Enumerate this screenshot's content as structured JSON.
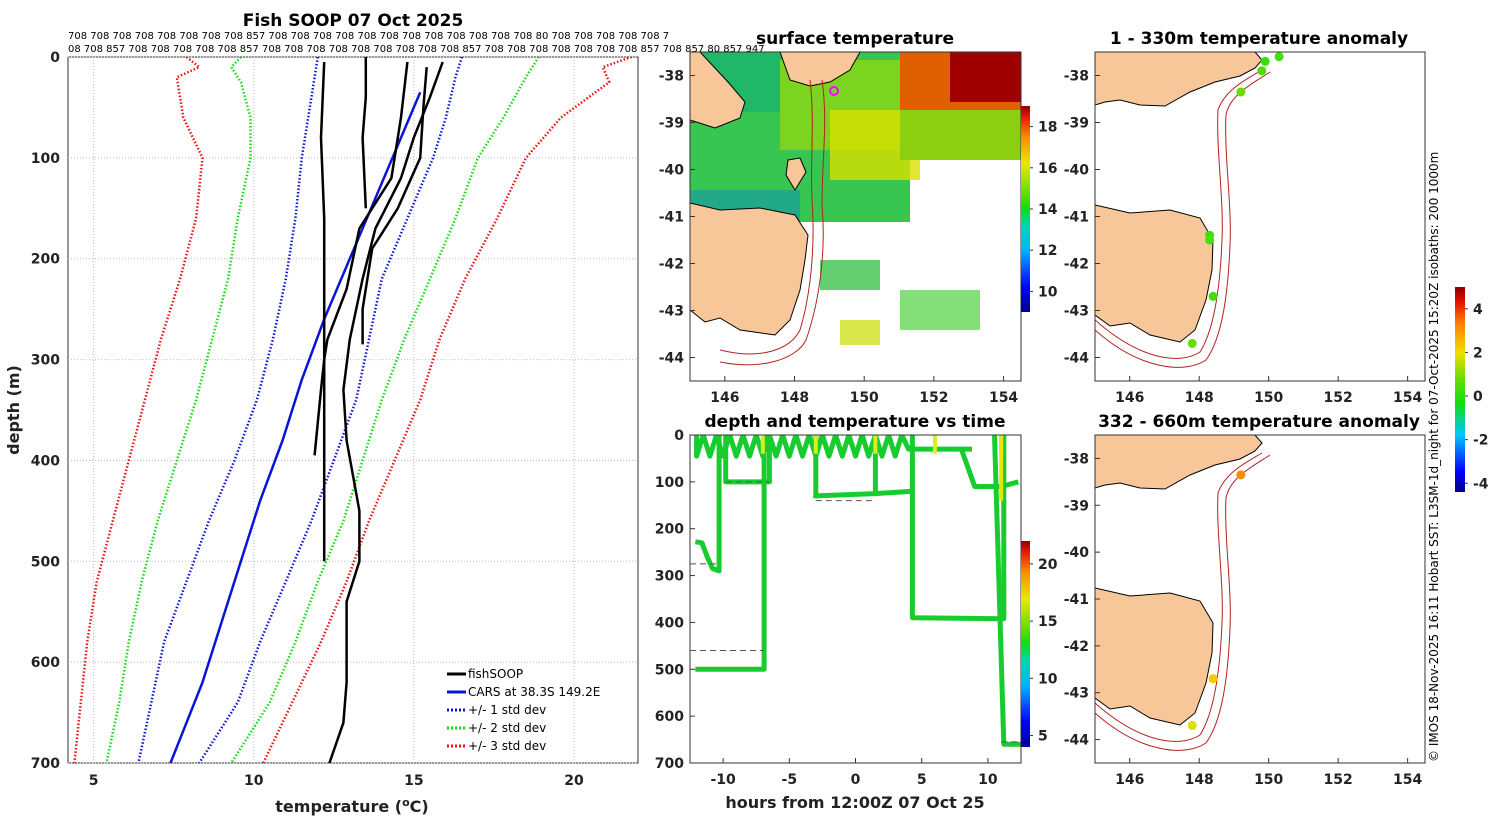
{
  "chart_data": [
    {
      "type": "line",
      "title": "Fish SOOP 07 Oct 2025",
      "xlabel": "temperature (°C)",
      "ylabel": "depth (m)",
      "xlim": [
        4.2,
        22
      ],
      "ylim": [
        0,
        700
      ],
      "xticks": [
        "5",
        "10",
        "15",
        "20"
      ],
      "xtick_values": [
        5,
        10,
        15,
        20
      ],
      "yticks": [
        "0",
        "100",
        "200",
        "300",
        "400",
        "500",
        "600",
        "700"
      ],
      "ytick_values": [
        0,
        100,
        200,
        300,
        400,
        500,
        600,
        700
      ],
      "top_ids_row1": "708 708 708 708 708 708 708 708 857 708 708 708 708 708 708 708 708 708 708 708 708 80 708 708 708 708 708 7",
      "top_ids_row2": "08 708 857 708 708 708 708 708 857 708 708 708 708 708 708 708 708 708 857 708 708 708 708 708 708 708 857 708 857 80 857 947",
      "series": [
        {
          "name": "fishSOOP",
          "color": "#000000",
          "style": "solid",
          "depth": [
            0,
            60,
            100,
            120,
            180,
            230,
            280
          ],
          "profiles": [
            [
              [
                13.5,
                0
              ],
              [
                13.5,
                40
              ],
              [
                13.4,
                80
              ],
              [
                13.5,
                150
              ]
            ],
            [
              [
                15.4,
                10
              ],
              [
                15.3,
                50
              ],
              [
                15.2,
                100
              ],
              [
                14.5,
                150
              ],
              [
                13.7,
                190
              ],
              [
                13.4,
                250
              ],
              [
                13.4,
                285
              ]
            ],
            [
              [
                14.8,
                5
              ],
              [
                14.6,
                60
              ],
              [
                14.3,
                120
              ],
              [
                13.3,
                170
              ],
              [
                12.9,
                230
              ],
              [
                12.3,
                280
              ],
              [
                12.2,
                300
              ],
              [
                12.1,
                330
              ],
              [
                11.9,
                395
              ]
            ],
            [
              [
                12.2,
                5
              ],
              [
                12.1,
                80
              ],
              [
                12.2,
                160
              ],
              [
                12.2,
                260
              ],
              [
                12.2,
                380
              ],
              [
                12.2,
                500
              ]
            ],
            [
              [
                15.9,
                5
              ],
              [
                15.5,
                40
              ],
              [
                15.0,
                80
              ],
              [
                14.6,
                120
              ],
              [
                13.8,
                170
              ],
              [
                13.4,
                220
              ],
              [
                13.0,
                280
              ],
              [
                12.8,
                330
              ],
              [
                12.9,
                380
              ],
              [
                13.3,
                450
              ],
              [
                13.3,
                500
              ],
              [
                12.9,
                540
              ],
              [
                12.9,
                620
              ],
              [
                12.8,
                660
              ],
              [
                12.2,
                715
              ]
            ]
          ]
        },
        {
          "name": "CARS at 38.3S 149.2E",
          "color": "#0a14d6",
          "style": "solid",
          "points": [
            [
              15.2,
              35
            ],
            [
              14.6,
              80
            ],
            [
              13.8,
              140
            ],
            [
              13.0,
              200
            ],
            [
              12.2,
              260
            ],
            [
              11.5,
              320
            ],
            [
              10.9,
              380
            ],
            [
              10.2,
              440
            ],
            [
              9.6,
              500
            ],
            [
              9.0,
              560
            ],
            [
              8.4,
              620
            ],
            [
              7.9,
              660
            ],
            [
              7.4,
              700
            ]
          ]
        },
        {
          "name": "+/- 1 std dev",
          "color": "#0a14d6",
          "style": "dotted",
          "left": [
            [
              12.0,
              0
            ],
            [
              11.9,
              20
            ],
            [
              11.7,
              60
            ],
            [
              11.5,
              100
            ],
            [
              11.3,
              160
            ],
            [
              11.0,
              220
            ],
            [
              10.6,
              280
            ],
            [
              10.1,
              340
            ],
            [
              9.4,
              400
            ],
            [
              8.6,
              460
            ],
            [
              7.9,
              520
            ],
            [
              7.2,
              580
            ],
            [
              6.8,
              640
            ],
            [
              6.4,
              700
            ]
          ],
          "right": [
            [
              16.5,
              0
            ],
            [
              16.3,
              20
            ],
            [
              16.0,
              60
            ],
            [
              15.6,
              100
            ],
            [
              14.8,
              160
            ],
            [
              14.0,
              220
            ],
            [
              13.6,
              280
            ],
            [
              13.2,
              340
            ],
            [
              12.5,
              400
            ],
            [
              11.8,
              460
            ],
            [
              11.0,
              520
            ],
            [
              10.2,
              580
            ],
            [
              9.5,
              640
            ],
            [
              8.3,
              700
            ]
          ]
        },
        {
          "name": "+/- 2 std dev",
          "color": "#11dd11",
          "style": "dotted",
          "left": [
            [
              9.6,
              0
            ],
            [
              9.3,
              10
            ],
            [
              9.6,
              25
            ],
            [
              9.9,
              60
            ],
            [
              9.9,
              100
            ],
            [
              9.5,
              160
            ],
            [
              9.2,
              220
            ],
            [
              8.7,
              280
            ],
            [
              8.2,
              340
            ],
            [
              7.6,
              400
            ],
            [
              7.0,
              460
            ],
            [
              6.5,
              520
            ],
            [
              6.1,
              580
            ],
            [
              5.8,
              640
            ],
            [
              5.4,
              700
            ]
          ],
          "right": [
            [
              18.9,
              0
            ],
            [
              18.5,
              20
            ],
            [
              17.8,
              60
            ],
            [
              17.0,
              100
            ],
            [
              16.3,
              160
            ],
            [
              15.5,
              220
            ],
            [
              14.7,
              280
            ],
            [
              14.0,
              340
            ],
            [
              13.4,
              400
            ],
            [
              12.8,
              460
            ],
            [
              12.0,
              520
            ],
            [
              11.3,
              580
            ],
            [
              10.5,
              640
            ],
            [
              9.3,
              700
            ]
          ]
        },
        {
          "name": "+/- 3 std dev",
          "color": "#ee1111",
          "style": "dotted",
          "left": [
            [
              7.9,
              0
            ],
            [
              8.3,
              10
            ],
            [
              7.6,
              20
            ],
            [
              7.8,
              60
            ],
            [
              8.4,
              100
            ],
            [
              8.2,
              160
            ],
            [
              7.7,
              220
            ],
            [
              7.1,
              280
            ],
            [
              6.6,
              340
            ],
            [
              6.1,
              400
            ],
            [
              5.6,
              460
            ],
            [
              5.1,
              520
            ],
            [
              4.8,
              580
            ],
            [
              4.6,
              640
            ],
            [
              4.4,
              700
            ]
          ],
          "right": [
            [
              21.8,
              0
            ],
            [
              20.9,
              10
            ],
            [
              21.1,
              25
            ],
            [
              19.6,
              60
            ],
            [
              18.5,
              100
            ],
            [
              17.6,
              160
            ],
            [
              16.6,
              220
            ],
            [
              15.8,
              280
            ],
            [
              15.2,
              340
            ],
            [
              14.4,
              400
            ],
            [
              13.6,
              460
            ],
            [
              12.9,
              520
            ],
            [
              12.1,
              580
            ],
            [
              11.2,
              640
            ],
            [
              10.3,
              700
            ]
          ]
        }
      ],
      "legend": [
        "fishSOOP",
        "CARS at 38.3S 149.2E",
        "+/- 1 std dev",
        "+/- 2 std dev",
        "+/- 3 std dev"
      ],
      "legend_position": "bottom-right",
      "grid": true
    },
    {
      "type": "heatmap",
      "title": "surface temperature",
      "xlim": [
        145,
        154.5
      ],
      "ylim": [
        -44.5,
        -37.5
      ],
      "xticks": [
        "146",
        "148",
        "150",
        "152",
        "154"
      ],
      "xtick_values": [
        146,
        148,
        150,
        152,
        154
      ],
      "yticks": [
        "-38",
        "-39",
        "-40",
        "-41",
        "-42",
        "-43",
        "-44"
      ],
      "ytick_values": [
        -38,
        -39,
        -40,
        -41,
        -42,
        -43,
        -44
      ],
      "colorbar_ticks": [
        "18",
        "16",
        "14",
        "12",
        "10"
      ],
      "colorbar_values": [
        18,
        16,
        14,
        12,
        10
      ],
      "colorbar_range": [
        9,
        19
      ]
    },
    {
      "type": "scatter",
      "title": "depth and temperature vs time",
      "xlabel": "hours from 12:00Z 07 Oct 25",
      "xlim": [
        -12.5,
        12.5
      ],
      "ylim": [
        0,
        700
      ],
      "xticks": [
        "-10",
        "-5",
        "0",
        "5",
        "10"
      ],
      "xtick_values": [
        -10,
        -5,
        0,
        5,
        10
      ],
      "yticks": [
        "0",
        "100",
        "200",
        "300",
        "400",
        "500",
        "600",
        "700"
      ],
      "ytick_values": [
        0,
        100,
        200,
        300,
        400,
        500,
        600,
        700
      ],
      "colorbar_ticks": [
        "20",
        "15",
        "10",
        "5"
      ],
      "colorbar_values": [
        20,
        15,
        10,
        5
      ],
      "colorbar_range": [
        4,
        22
      ]
    },
    {
      "type": "scatter",
      "title": "1 - 330m temperature anomaly",
      "xlim": [
        145,
        154.5
      ],
      "ylim": [
        -44.5,
        -37.5
      ],
      "xticks": [
        "146",
        "148",
        "150",
        "152",
        "154"
      ],
      "xtick_values": [
        146,
        148,
        150,
        152,
        154
      ],
      "yticks": [
        "-38",
        "-39",
        "-40",
        "-41",
        "-42",
        "-43",
        "-44"
      ],
      "ytick_values": [
        -38,
        -39,
        -40,
        -41,
        -42,
        -43,
        -44
      ],
      "points": [
        {
          "lon": 150.3,
          "lat": -37.6,
          "anom": 0.3
        },
        {
          "lon": 149.9,
          "lat": -37.7,
          "anom": 0.2
        },
        {
          "lon": 149.8,
          "lat": -37.9,
          "anom": 0.4
        },
        {
          "lon": 149.2,
          "lat": -38.35,
          "anom": 0.8
        },
        {
          "lon": 148.3,
          "lat": -41.4,
          "anom": 0.3
        },
        {
          "lon": 148.3,
          "lat": -41.5,
          "anom": 0.4
        },
        {
          "lon": 148.4,
          "lat": -42.7,
          "anom": 0.3
        },
        {
          "lon": 147.8,
          "lat": -43.7,
          "anom": 0.8
        }
      ]
    },
    {
      "type": "scatter",
      "title": "332 - 660m temperature anomaly",
      "xlim": [
        145,
        154.5
      ],
      "ylim": [
        -44.5,
        -37.5
      ],
      "xticks": [
        "146",
        "148",
        "150",
        "152",
        "154"
      ],
      "xtick_values": [
        146,
        148,
        150,
        152,
        154
      ],
      "yticks": [
        "-38",
        "-39",
        "-40",
        "-41",
        "-42",
        "-43",
        "-44"
      ],
      "ytick_values": [
        -38,
        -39,
        -40,
        -41,
        -42,
        -43,
        -44
      ],
      "points": [
        {
          "lon": 149.2,
          "lat": -38.35,
          "anom": 3.2
        },
        {
          "lon": 148.4,
          "lat": -42.7,
          "anom": 2.3
        },
        {
          "lon": 147.8,
          "lat": -43.7,
          "anom": 1.8
        }
      ]
    }
  ],
  "anomaly_colorbar": {
    "ticks": [
      "4",
      "2",
      "0",
      "-2",
      "-4"
    ],
    "values": [
      4,
      2,
      0,
      -2,
      -4
    ],
    "range": [
      -4.4,
      5
    ]
  },
  "footer": "© IMOS 18-Nov-2025 16:11 Hobart SST: L3SM-1d_night for 07-Oct-2025 15:20Z isobaths: 200  1000m",
  "colors": {
    "land": "#f7c79a",
    "isobath": "#b3221f",
    "cars": "#0a14d6",
    "std1": "#0a14d6",
    "std2": "#11dd11",
    "std3": "#ee1111",
    "track": "#18cc30"
  }
}
